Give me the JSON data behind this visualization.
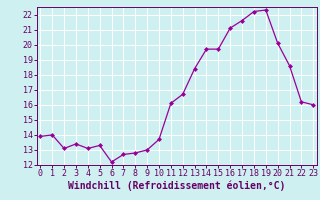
{
  "x": [
    0,
    1,
    2,
    3,
    4,
    5,
    6,
    7,
    8,
    9,
    10,
    11,
    12,
    13,
    14,
    15,
    16,
    17,
    18,
    19,
    20,
    21,
    22,
    23
  ],
  "y": [
    13.9,
    14.0,
    13.1,
    13.4,
    13.1,
    13.3,
    12.2,
    12.7,
    12.8,
    13.0,
    13.7,
    16.1,
    16.7,
    18.4,
    19.7,
    19.7,
    21.1,
    21.6,
    22.2,
    22.3,
    20.1,
    18.6,
    16.2,
    16.0
  ],
  "line_color": "#990099",
  "marker": "D",
  "marker_size": 2.0,
  "bg_color": "#cff0f0",
  "grid_color": "#ffffff",
  "xlabel": "Windchill (Refroidissement éolien,°C)",
  "xlabel_color": "#660066",
  "tick_color": "#660066",
  "axis_color": "#660066",
  "ylim": [
    12,
    22.5
  ],
  "yticks": [
    12,
    13,
    14,
    15,
    16,
    17,
    18,
    19,
    20,
    21,
    22
  ],
  "xticks": [
    0,
    1,
    2,
    3,
    4,
    5,
    6,
    7,
    8,
    9,
    10,
    11,
    12,
    13,
    14,
    15,
    16,
    17,
    18,
    19,
    20,
    21,
    22,
    23
  ],
  "xlabel_fontsize": 7.0,
  "tick_fontsize": 6.0,
  "xlim": [
    -0.3,
    23.3
  ]
}
